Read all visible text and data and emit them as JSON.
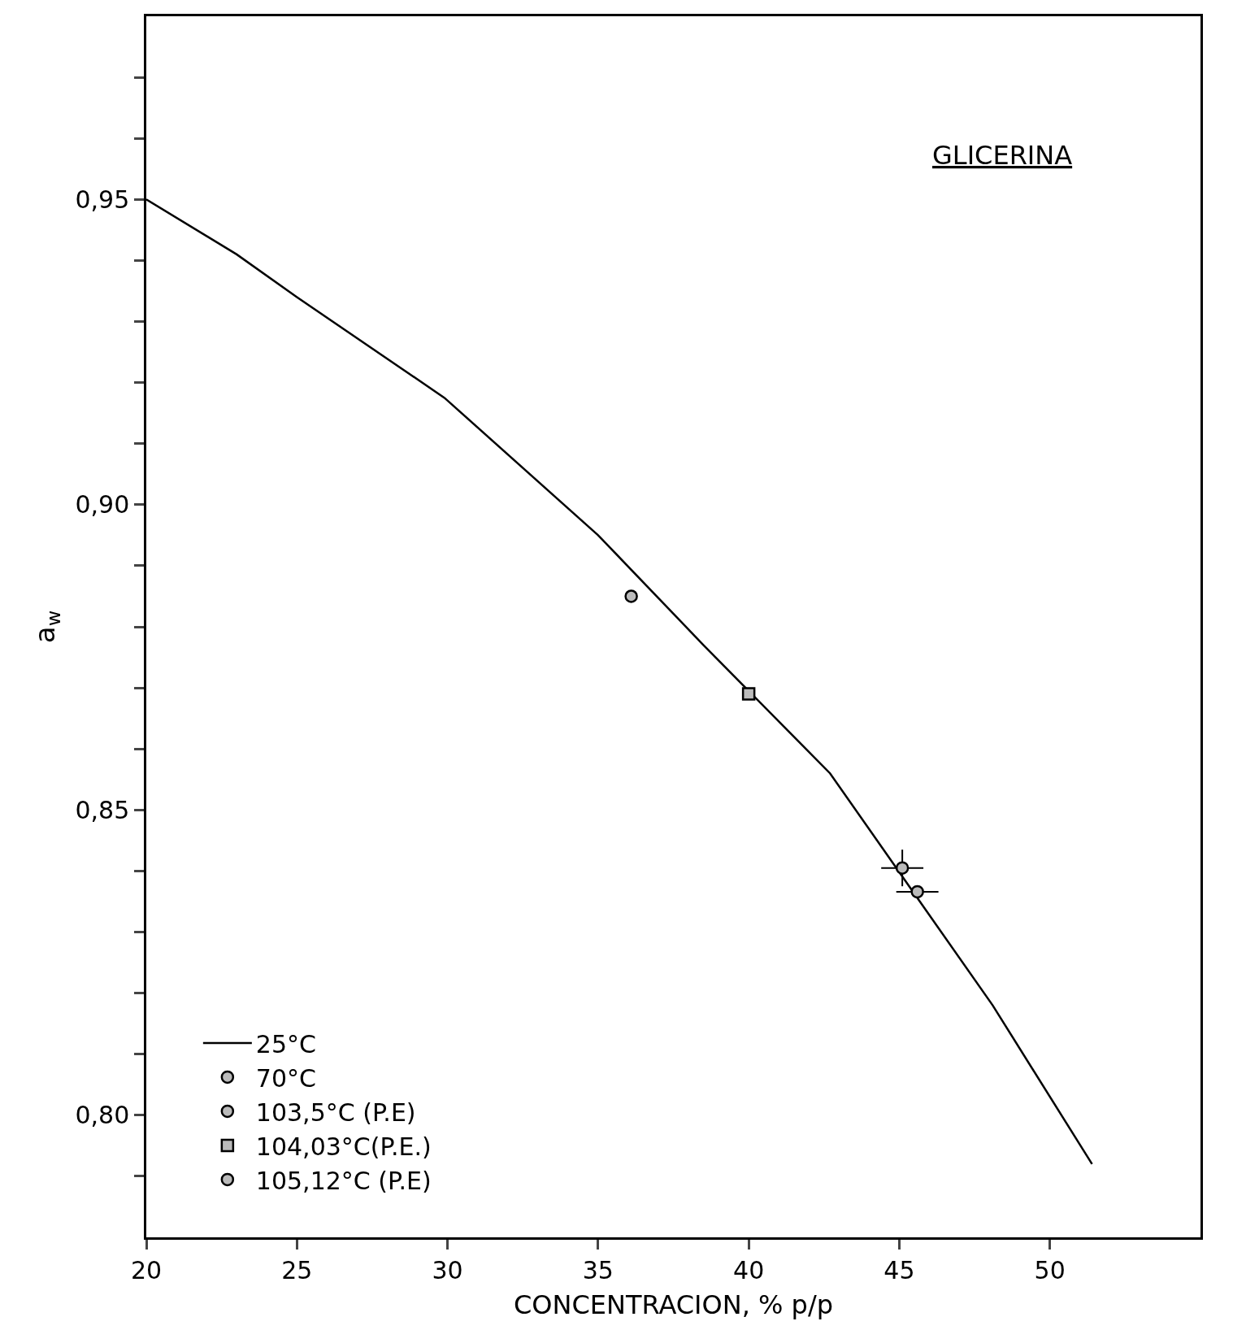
{
  "chart_data": {
    "type": "line",
    "xlabel": "CONCENTRACION, % p/p",
    "ylabel": "a$_{w}$",
    "annotations": [
      "GLICERINA"
    ],
    "xlim": [
      20,
      55
    ],
    "xticks": [
      20,
      25,
      30,
      35,
      40,
      45,
      50
    ],
    "ylim": [
      0.78,
      0.98
    ],
    "yticks": [
      {
        "value": 0.79,
        "label": null
      },
      {
        "value": 0.8,
        "label": "0,80"
      },
      {
        "value": 0.81,
        "label": null
      },
      {
        "value": 0.82,
        "label": null
      },
      {
        "value": 0.83,
        "label": null
      },
      {
        "value": 0.84,
        "label": null
      },
      {
        "value": 0.85,
        "label": "0,85"
      },
      {
        "value": 0.86,
        "label": null
      },
      {
        "value": 0.87,
        "label": null
      },
      {
        "value": 0.88,
        "label": null
      },
      {
        "value": 0.89,
        "label": null
      },
      {
        "value": 0.9,
        "label": "0,90"
      },
      {
        "value": 0.91,
        "label": null
      },
      {
        "value": 0.92,
        "label": null
      },
      {
        "value": 0.93,
        "label": null
      },
      {
        "value": 0.94,
        "label": null
      },
      {
        "value": 0.95,
        "label": "0,95"
      },
      {
        "value": 0.96,
        "label": null
      },
      {
        "value": 0.97,
        "label": null
      }
    ],
    "legend": "bottom left",
    "series": [
      {
        "name": "25°C",
        "color": "#000000",
        "marker": "none",
        "x": [
          20,
          23.0,
          25.0,
          29.9,
          35.0,
          38.5,
          42.7,
          45.4,
          48.1,
          51.4
        ],
        "values": [
          0.95,
          0.941,
          0.934,
          0.9175,
          0.895,
          0.877,
          0.856,
          0.837,
          0.818,
          0.792
        ]
      },
      {
        "name": "70°C",
        "type": "scatter",
        "color": "#000000",
        "marker": "circle",
        "x": [
          45.1
        ],
        "values": [
          0.8405
        ],
        "errors": [
          0.003
        ],
        "xerrors": [
          0.7
        ]
      },
      {
        "name": "103,5°C (P.E)",
        "type": "scatter",
        "color": "#000000",
        "marker": "circle",
        "x": [
          36.1
        ],
        "values": [
          0.885
        ]
      },
      {
        "name": "104,03°C(P.E.)",
        "type": "scatter",
        "color": "#000000",
        "marker": "square",
        "x": [
          40.0
        ],
        "values": [
          0.869
        ]
      },
      {
        "name": "105,12°C (P.E)",
        "type": "scatter",
        "color": "#000000",
        "marker": "circle",
        "x": [
          45.6
        ],
        "values": [
          0.8366
        ],
        "xerrors": [
          0.7
        ]
      }
    ]
  }
}
